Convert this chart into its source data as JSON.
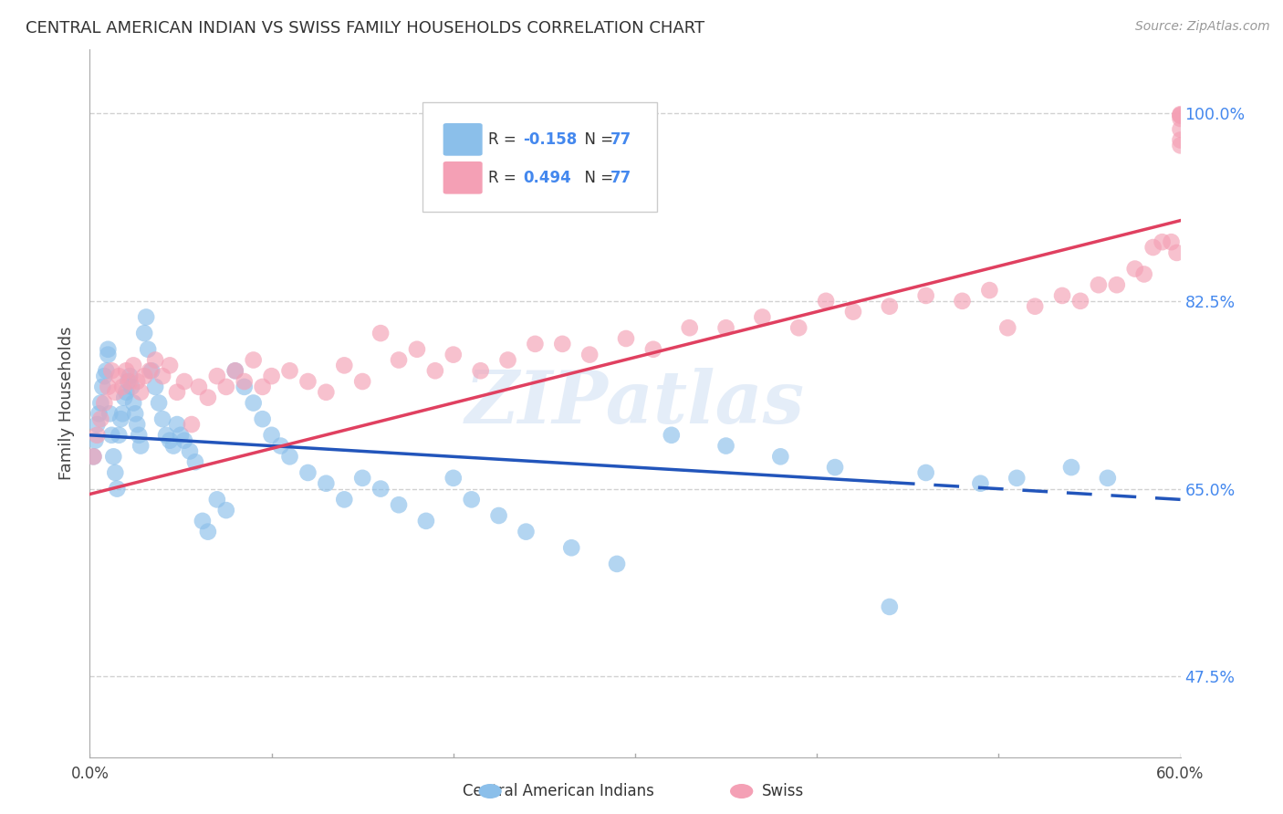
{
  "title": "CENTRAL AMERICAN INDIAN VS SWISS FAMILY HOUSEHOLDS CORRELATION CHART",
  "source": "Source: ZipAtlas.com",
  "xlabel_blue": "Central American Indians",
  "xlabel_pink": "Swiss",
  "ylabel": "Family Households",
  "r_blue": -0.158,
  "r_pink": 0.494,
  "n_blue": 77,
  "n_pink": 77,
  "xlim": [
    0.0,
    0.6
  ],
  "ylim": [
    0.4,
    1.06
  ],
  "right_yticks": [
    0.475,
    0.65,
    0.825,
    1.0
  ],
  "right_yticklabels": [
    "47.5%",
    "65.0%",
    "82.5%",
    "100.0%"
  ],
  "xticks": [
    0.0,
    0.1,
    0.2,
    0.3,
    0.4,
    0.5,
    0.6
  ],
  "color_blue": "#8bbfea",
  "color_pink": "#f4a0b5",
  "line_color_blue": "#2255bb",
  "line_color_pink": "#e04060",
  "grid_color": "#cccccc",
  "background_color": "#ffffff",
  "watermark": "ZIPatlas",
  "blue_line_x0": 0.0,
  "blue_line_y0": 0.7,
  "blue_line_x1": 0.6,
  "blue_line_y1": 0.64,
  "blue_line_solid_end": 0.44,
  "pink_line_x0": 0.0,
  "pink_line_y0": 0.645,
  "pink_line_x1": 0.6,
  "pink_line_y1": 0.9,
  "blue_x": [
    0.002,
    0.003,
    0.004,
    0.005,
    0.006,
    0.007,
    0.008,
    0.009,
    0.01,
    0.01,
    0.011,
    0.012,
    0.013,
    0.014,
    0.015,
    0.016,
    0.017,
    0.018,
    0.019,
    0.02,
    0.021,
    0.022,
    0.023,
    0.024,
    0.025,
    0.026,
    0.027,
    0.028,
    0.03,
    0.031,
    0.032,
    0.034,
    0.036,
    0.038,
    0.04,
    0.042,
    0.044,
    0.046,
    0.048,
    0.05,
    0.052,
    0.055,
    0.058,
    0.062,
    0.065,
    0.07,
    0.075,
    0.08,
    0.085,
    0.09,
    0.095,
    0.1,
    0.105,
    0.11,
    0.12,
    0.13,
    0.14,
    0.15,
    0.16,
    0.17,
    0.185,
    0.2,
    0.21,
    0.225,
    0.24,
    0.265,
    0.29,
    0.32,
    0.35,
    0.38,
    0.41,
    0.44,
    0.46,
    0.49,
    0.51,
    0.54,
    0.56
  ],
  "blue_y": [
    0.68,
    0.695,
    0.71,
    0.72,
    0.73,
    0.745,
    0.755,
    0.76,
    0.775,
    0.78,
    0.72,
    0.7,
    0.68,
    0.665,
    0.65,
    0.7,
    0.715,
    0.72,
    0.735,
    0.74,
    0.75,
    0.755,
    0.745,
    0.73,
    0.72,
    0.71,
    0.7,
    0.69,
    0.795,
    0.81,
    0.78,
    0.76,
    0.745,
    0.73,
    0.715,
    0.7,
    0.695,
    0.69,
    0.71,
    0.7,
    0.695,
    0.685,
    0.675,
    0.62,
    0.61,
    0.64,
    0.63,
    0.76,
    0.745,
    0.73,
    0.715,
    0.7,
    0.69,
    0.68,
    0.665,
    0.655,
    0.64,
    0.66,
    0.65,
    0.635,
    0.62,
    0.66,
    0.64,
    0.625,
    0.61,
    0.595,
    0.58,
    0.7,
    0.69,
    0.68,
    0.67,
    0.54,
    0.665,
    0.655,
    0.66,
    0.67,
    0.66
  ],
  "pink_x": [
    0.002,
    0.004,
    0.006,
    0.008,
    0.01,
    0.012,
    0.014,
    0.016,
    0.018,
    0.02,
    0.022,
    0.024,
    0.026,
    0.028,
    0.03,
    0.033,
    0.036,
    0.04,
    0.044,
    0.048,
    0.052,
    0.056,
    0.06,
    0.065,
    0.07,
    0.075,
    0.08,
    0.085,
    0.09,
    0.095,
    0.1,
    0.11,
    0.12,
    0.13,
    0.14,
    0.15,
    0.16,
    0.17,
    0.18,
    0.19,
    0.2,
    0.215,
    0.23,
    0.245,
    0.26,
    0.275,
    0.295,
    0.31,
    0.33,
    0.35,
    0.37,
    0.39,
    0.405,
    0.42,
    0.44,
    0.46,
    0.48,
    0.495,
    0.505,
    0.52,
    0.535,
    0.545,
    0.555,
    0.565,
    0.575,
    0.58,
    0.585,
    0.59,
    0.595,
    0.598,
    0.6,
    0.6,
    0.6,
    0.6,
    0.6,
    0.6,
    0.6
  ],
  "pink_y": [
    0.68,
    0.7,
    0.715,
    0.73,
    0.745,
    0.76,
    0.74,
    0.755,
    0.745,
    0.76,
    0.75,
    0.765,
    0.75,
    0.74,
    0.755,
    0.76,
    0.77,
    0.755,
    0.765,
    0.74,
    0.75,
    0.71,
    0.745,
    0.735,
    0.755,
    0.745,
    0.76,
    0.75,
    0.77,
    0.745,
    0.755,
    0.76,
    0.75,
    0.74,
    0.765,
    0.75,
    0.795,
    0.77,
    0.78,
    0.76,
    0.775,
    0.76,
    0.77,
    0.785,
    0.785,
    0.775,
    0.79,
    0.78,
    0.8,
    0.8,
    0.81,
    0.8,
    0.825,
    0.815,
    0.82,
    0.83,
    0.825,
    0.835,
    0.8,
    0.82,
    0.83,
    0.825,
    0.84,
    0.84,
    0.855,
    0.85,
    0.875,
    0.88,
    0.88,
    0.87,
    0.97,
    0.975,
    0.985,
    0.995,
    0.998,
    0.998,
    0.999
  ]
}
